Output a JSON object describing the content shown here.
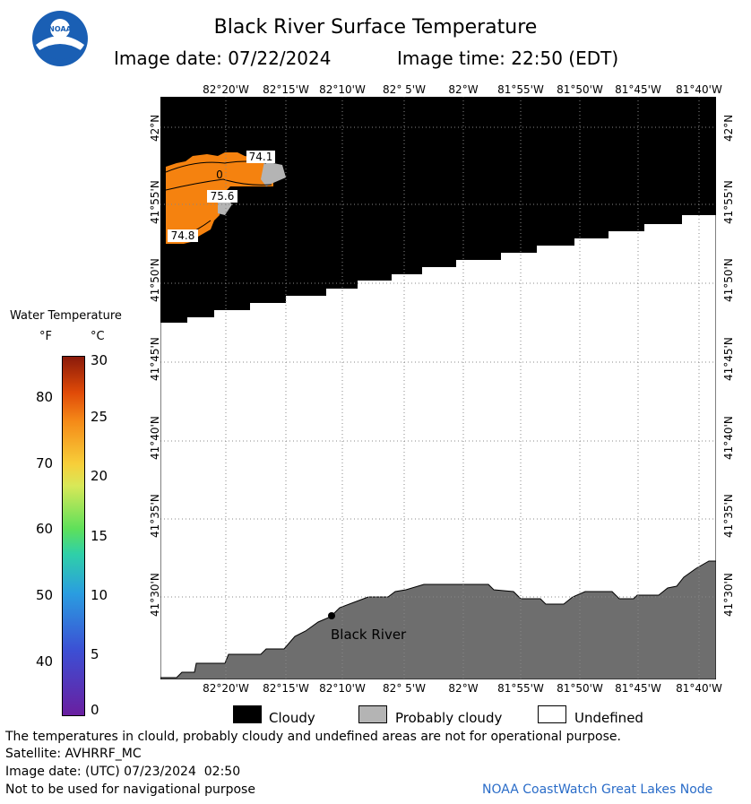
{
  "header": {
    "title": "Black River Surface Temperature",
    "image_date_label": "Image date: 07/22/2024",
    "image_time_label": "Image time: 22:50 (EDT)"
  },
  "map": {
    "lon_ticks": [
      "82°20'W",
      "82°15'W",
      "82°10'W",
      "82° 5'W",
      "82°W",
      "81°55'W",
      "81°50'W",
      "81°45'W",
      "81°40'W"
    ],
    "lat_ticks": [
      "42°N",
      "41°55'N",
      "41°50'N",
      "41°45'N",
      "41°40'N",
      "41°35'N",
      "41°30'N"
    ],
    "contour_labels": [
      "74.1",
      "0",
      "75.6",
      "74.8"
    ],
    "place_label": "Black River",
    "colors": {
      "cloud": "#000000",
      "probably_cloudy": "#b4b4b4",
      "undefined": "#ffffff",
      "land": "#6e6e6e",
      "water_warm": "#f5820f",
      "grid": "#888888"
    }
  },
  "colorbar": {
    "title": "Water Temperature",
    "unit_f": "°F",
    "unit_c": "°C",
    "f_ticks": [
      "80",
      "70",
      "60",
      "50",
      "40"
    ],
    "c_ticks": [
      "30",
      "25",
      "20",
      "15",
      "10",
      "5",
      "0"
    ]
  },
  "legend": {
    "cloudy": "Cloudy",
    "probably_cloudy": "Probably cloudy",
    "undefined": "Undefined"
  },
  "footer": {
    "disclaimer": "The temperatures in clould, probably cloudy and undefined areas are not for operational purpose.",
    "satellite": "Satellite: AVHRRF_MC",
    "utc_date": "Image date: (UTC) 07/23/2024  02:50",
    "navigation": "Not to be used for navigational purpose",
    "credit": "NOAA CoastWatch Great Lakes Node"
  }
}
